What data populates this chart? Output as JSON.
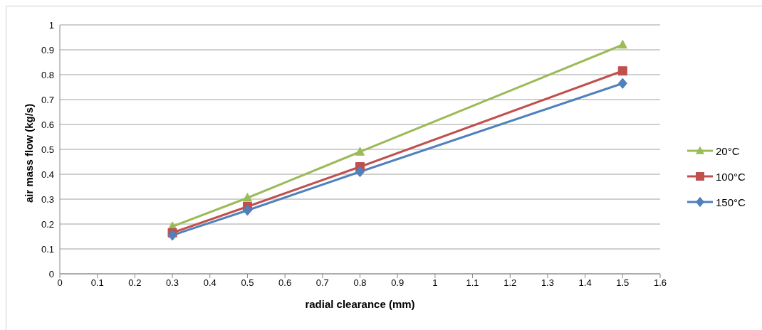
{
  "chart_data": {
    "type": "line",
    "xlabel": "radial clearance (mm)",
    "ylabel": "air mass flow (kg/s)",
    "x": [
      0.3,
      0.5,
      0.8,
      1.5
    ],
    "series": [
      {
        "name": "20°C",
        "color": "#9bbb59",
        "marker": "triangle",
        "values": [
          0.19,
          0.305,
          0.49,
          0.92
        ]
      },
      {
        "name": "100°C",
        "color": "#c0504d",
        "marker": "square",
        "values": [
          0.165,
          0.27,
          0.43,
          0.815
        ]
      },
      {
        "name": "150°C",
        "color": "#4f81bd",
        "marker": "diamond",
        "values": [
          0.155,
          0.255,
          0.41,
          0.765
        ]
      }
    ],
    "xlim": [
      0,
      1.6
    ],
    "xticks": [
      0,
      0.1,
      0.2,
      0.3,
      0.4,
      0.5,
      0.6,
      0.7,
      0.8,
      0.9,
      1,
      1.1,
      1.2,
      1.3,
      1.4,
      1.5,
      1.6
    ],
    "ylim": [
      0,
      1
    ],
    "yticks": [
      0,
      0.1,
      0.2,
      0.3,
      0.4,
      0.5,
      0.6,
      0.7,
      0.8,
      0.9,
      1
    ],
    "grid": "y",
    "legend": "right"
  }
}
